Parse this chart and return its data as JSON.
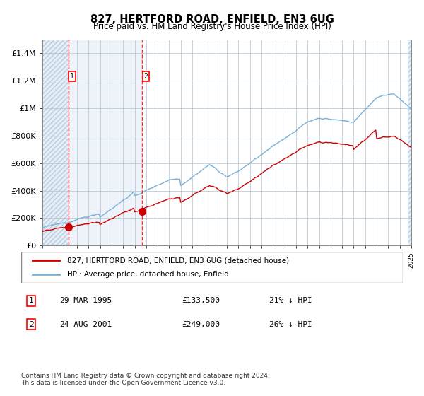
{
  "title": "827, HERTFORD ROAD, ENFIELD, EN3 6UG",
  "subtitle": "Price paid vs. HM Land Registry's House Price Index (HPI)",
  "x_start_year": 1993,
  "x_end_year": 2025,
  "ylim": [
    0,
    1500000
  ],
  "yticks": [
    0,
    200000,
    400000,
    600000,
    800000,
    1000000,
    1200000,
    1400000
  ],
  "ytick_labels": [
    "£0",
    "£200K",
    "£400K",
    "£600K",
    "£800K",
    "£1M",
    "£1.2M",
    "£1.4M"
  ],
  "sale1_year": 1995.24,
  "sale1_value": 133500,
  "sale2_year": 2001.65,
  "sale2_value": 249000,
  "hpi_label": "HPI: Average price, detached house, Enfield",
  "property_label": "827, HERTFORD ROAD, ENFIELD, EN3 6UG (detached house)",
  "legend_entry1": "827, HERTFORD ROAD, ENFIELD, EN3 6UG (detached house)",
  "legend_entry2": "HPI: Average price, detached house, Enfield",
  "table_row1": [
    "1",
    "29-MAR-1995",
    "£133,500",
    "21% ↓ HPI"
  ],
  "table_row2": [
    "2",
    "24-AUG-2001",
    "£249,000",
    "26% ↓ HPI"
  ],
  "footnote": "Contains HM Land Registry data © Crown copyright and database right 2024.\nThis data is licensed under the Open Government Licence v3.0.",
  "hatch_color": "#c8d8e8",
  "bg_color": "#dce8f0",
  "grid_color": "#b0c0d0",
  "plot_bg": "#ffffff",
  "red_line_color": "#cc0000",
  "blue_line_color": "#7ab0d4",
  "hatch_left_color": "#c0d4e4"
}
